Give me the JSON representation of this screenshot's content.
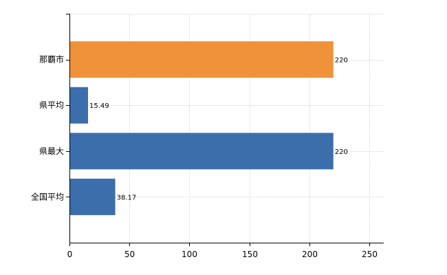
{
  "chart_data": {
    "type": "bar",
    "orientation": "horizontal",
    "categories": [
      "那覇市",
      "県平均",
      "県最大",
      "全国平均"
    ],
    "values": [
      220,
      15.49,
      220,
      38.17
    ],
    "data_labels": [
      "220",
      "15.49",
      "220",
      "38.17"
    ],
    "bar_colors": [
      "#f0923a",
      "#3b6eab",
      "#3b6eab",
      "#3b6eab"
    ],
    "x_ticks": [
      "0",
      "50",
      "100",
      "150",
      "200",
      "250"
    ],
    "xlim": [
      0,
      262
    ],
    "grid": true,
    "legend": "none",
    "title": "",
    "xlabel": "",
    "ylabel": ""
  }
}
